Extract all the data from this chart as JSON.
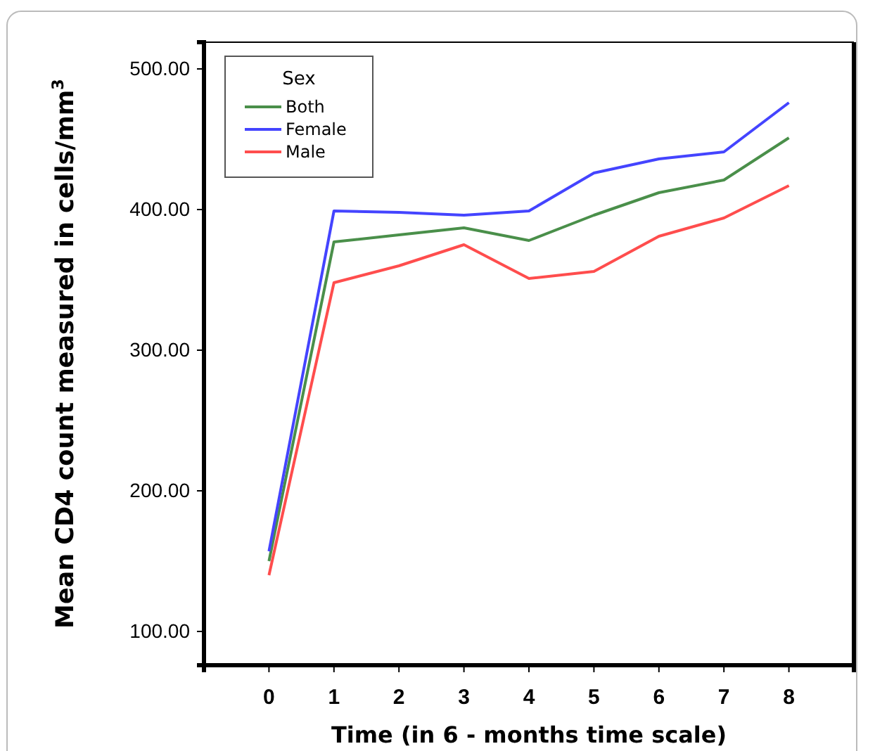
{
  "chart_data": {
    "type": "line",
    "xlabel": "Time (in 6 - months time scale)",
    "ylabel": "Mean CD4 count measured in cells/mm$^{3}$",
    "legend_title": "Sex",
    "legend": "top left",
    "grid": false,
    "marker": "none",
    "line_style": "solid",
    "x": [
      0,
      1,
      2,
      3,
      4,
      5,
      6,
      7,
      8
    ],
    "xlim": [
      -1,
      9
    ],
    "xticks": [
      0,
      1,
      2,
      3,
      4,
      5,
      6,
      7,
      8
    ],
    "ylim": [
      76,
      519
    ],
    "yticks": [
      {
        "value": 100,
        "label": "100.00"
      },
      {
        "value": 200,
        "label": "200.00"
      },
      {
        "value": 300,
        "label": "300.00"
      },
      {
        "value": 400,
        "label": "400.00"
      },
      {
        "value": 500,
        "label": "500.00"
      }
    ],
    "series": [
      {
        "name": "Both",
        "color": "#4a8f4a",
        "values": [
          150,
          377,
          382,
          387,
          378,
          396,
          412,
          421,
          451
        ]
      },
      {
        "name": "Female",
        "color": "#4444ff",
        "values": [
          157,
          399,
          398,
          396,
          399,
          426,
          436,
          441,
          476
        ]
      },
      {
        "name": "Male",
        "color": "#ff4d4d",
        "values": [
          140,
          348,
          360,
          375,
          351,
          356,
          381,
          394,
          417
        ]
      }
    ]
  }
}
